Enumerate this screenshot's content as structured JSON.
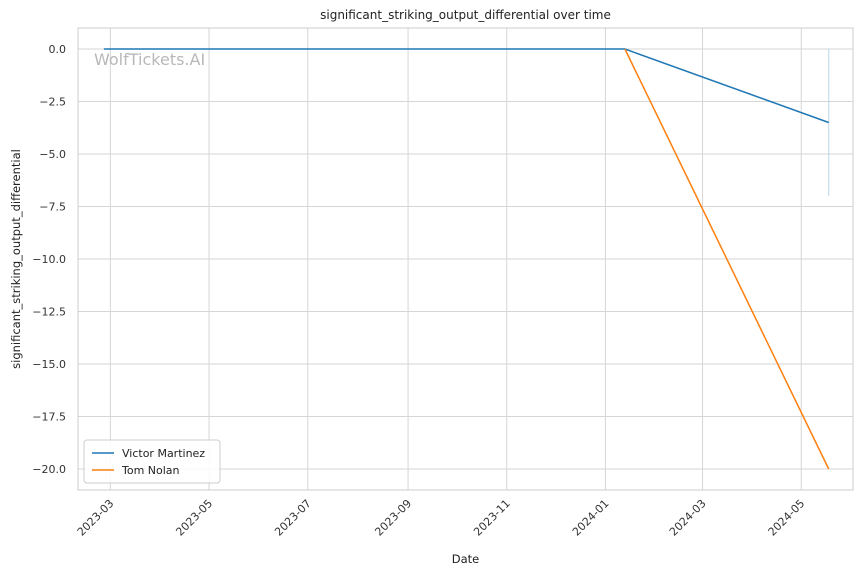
{
  "chart_data": {
    "type": "line",
    "title": "significant_striking_output_differential over time",
    "xlabel": "Date",
    "ylabel": "significant_striking_output_differential",
    "watermark": "WolfTickets.AI",
    "x_ticks": [
      "2023-03",
      "2023-05",
      "2023-07",
      "2023-09",
      "2023-11",
      "2024-01",
      "2024-03",
      "2024-05"
    ],
    "y_ticks": [
      0.0,
      -2.5,
      -5.0,
      -7.5,
      -10.0,
      -12.5,
      -15.0,
      -17.5,
      -20.0
    ],
    "y_tick_labels": [
      "0.0",
      "−2.5",
      "−5.0",
      "−7.5",
      "−10.0",
      "−12.5",
      "−15.0",
      "−17.5",
      "−20.0"
    ],
    "xlim": [
      "2023-02-09",
      "2024-06-02"
    ],
    "ylim": [
      -21.0,
      1.0
    ],
    "grid": true,
    "legend_position": "lower-left",
    "series": [
      {
        "name": "Victor Martinez",
        "color": "#1f77b4",
        "points": [
          {
            "x": "2023-02-25",
            "y": 0.0
          },
          {
            "x": "2024-01-13",
            "y": 0.0
          },
          {
            "x": "2024-05-18",
            "y": -3.5
          }
        ]
      },
      {
        "name": "Tom Nolan",
        "color": "#ff7f0e",
        "points": [
          {
            "x": "2024-01-13",
            "y": 0.0
          },
          {
            "x": "2024-05-18",
            "y": -20.0
          }
        ]
      }
    ],
    "error_band": {
      "x": "2024-05-18",
      "y_low": -7.0,
      "y_high": 0.0,
      "color": "#a6cee3"
    }
  }
}
